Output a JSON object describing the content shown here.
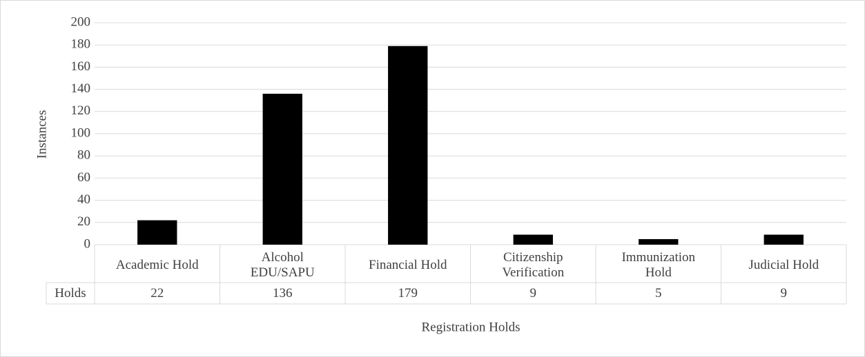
{
  "chart_data": {
    "type": "bar",
    "categories": [
      "Academic Hold",
      "Alcohol EDU/SAPU",
      "Financial Hold",
      "Citizenship Verification",
      "Immunization Hold",
      "Judicial Hold"
    ],
    "series": [
      {
        "name": "Holds",
        "color": "#000000",
        "values": [
          22,
          136,
          179,
          9,
          5,
          9
        ]
      }
    ],
    "ylim": [
      0,
      200
    ],
    "yticks": [
      0,
      20,
      40,
      60,
      80,
      100,
      120,
      140,
      160,
      180,
      200
    ],
    "grid": true,
    "y_label": "Instances",
    "x_label": "Registration Holds"
  }
}
